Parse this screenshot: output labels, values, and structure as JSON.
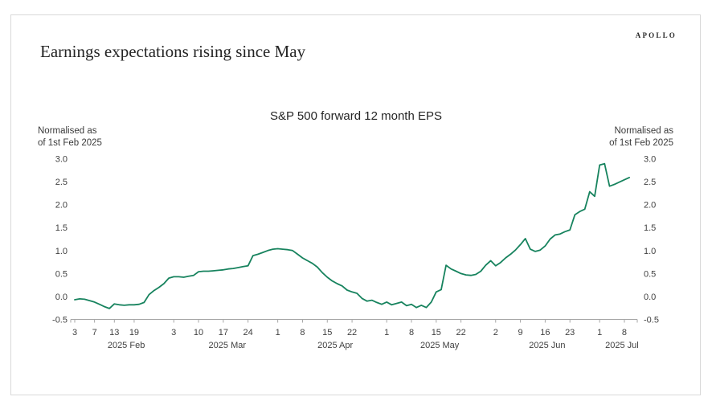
{
  "header": {
    "title": "Earnings expectations rising since May",
    "logo": "APOLLO"
  },
  "colors": {
    "line": "#17835e",
    "axis": "#a6a6a6",
    "tick_text": "#404040",
    "card_border": "#d9d9d9",
    "title_text": "#252525"
  },
  "chart_data": {
    "type": "line",
    "title": "S&P 500 forward 12 month EPS",
    "axis_note_left": {
      "line1": "Normalised as",
      "line2": "of 1st Feb 2025"
    },
    "axis_note_right": {
      "line1": "Normalised as",
      "line2": "of 1st Feb 2025"
    },
    "ylabel": "Normalised as of 1st Feb 2025",
    "ylim": [
      -0.5,
      3.0
    ],
    "grid": false,
    "legend_position": "none",
    "y_ticks": [
      {
        "label": "3.0",
        "value": 3.0
      },
      {
        "label": "2.5",
        "value": 2.5
      },
      {
        "label": "2.0",
        "value": 2.0
      },
      {
        "label": "1.5",
        "value": 1.5
      },
      {
        "label": "1.0",
        "value": 1.0
      },
      {
        "label": "0.5",
        "value": 0.5
      },
      {
        "label": "0.0",
        "value": 0.0
      },
      {
        "label": "-0.5",
        "value": -0.5
      }
    ],
    "x_day_ticks": [
      {
        "label": "3",
        "bd": 0
      },
      {
        "label": "7",
        "bd": 4
      },
      {
        "label": "13",
        "bd": 8
      },
      {
        "label": "19",
        "bd": 12
      },
      {
        "label": "3",
        "bd": 20
      },
      {
        "label": "10",
        "bd": 25
      },
      {
        "label": "17",
        "bd": 30
      },
      {
        "label": "24",
        "bd": 35
      },
      {
        "label": "1",
        "bd": 41
      },
      {
        "label": "8",
        "bd": 46
      },
      {
        "label": "15",
        "bd": 51
      },
      {
        "label": "22",
        "bd": 56
      },
      {
        "label": "1",
        "bd": 63
      },
      {
        "label": "8",
        "bd": 68
      },
      {
        "label": "15",
        "bd": 73
      },
      {
        "label": "22",
        "bd": 78
      },
      {
        "label": "2",
        "bd": 85
      },
      {
        "label": "9",
        "bd": 90
      },
      {
        "label": "16",
        "bd": 95
      },
      {
        "label": "23",
        "bd": 100
      },
      {
        "label": "1",
        "bd": 106
      },
      {
        "label": "8",
        "bd": 111
      }
    ],
    "x_month_labels": [
      {
        "label": "2025 Feb",
        "bd": 10.4
      },
      {
        "label": "2025 Mar",
        "bd": 30.8
      },
      {
        "label": "2025 Apr",
        "bd": 52.6
      },
      {
        "label": "2025 May",
        "bd": 73.7
      },
      {
        "label": "2025 Jun",
        "bd": 95.4
      },
      {
        "label": "2025 Jul",
        "bd": 110.5
      }
    ],
    "series": [
      {
        "name": "S&P 500 forward 12 month EPS (normalised to 1st Feb 2025)",
        "dates": [
          "Feb 3",
          "Feb 4",
          "Feb 5",
          "Feb 6",
          "Feb 7",
          "Feb 10",
          "Feb 11",
          "Feb 12",
          "Feb 13",
          "Feb 14",
          "Feb 17",
          "Feb 18",
          "Feb 19",
          "Feb 20",
          "Feb 21",
          "Feb 24",
          "Feb 25",
          "Feb 26",
          "Feb 27",
          "Feb 28",
          "Mar 3",
          "Mar 4",
          "Mar 5",
          "Mar 6",
          "Mar 7",
          "Mar 10",
          "Mar 11",
          "Mar 12",
          "Mar 13",
          "Mar 14",
          "Mar 17",
          "Mar 18",
          "Mar 19",
          "Mar 20",
          "Mar 21",
          "Mar 24",
          "Mar 25",
          "Mar 26",
          "Mar 27",
          "Mar 28",
          "Mar 31",
          "Apr 1",
          "Apr 2",
          "Apr 3",
          "Apr 4",
          "Apr 7",
          "Apr 8",
          "Apr 9",
          "Apr 10",
          "Apr 11",
          "Apr 14",
          "Apr 15",
          "Apr 16",
          "Apr 17",
          "Apr 18",
          "Apr 21",
          "Apr 22",
          "Apr 23",
          "Apr 24",
          "Apr 25",
          "Apr 28",
          "Apr 29",
          "Apr 30",
          "May 1",
          "May 2",
          "May 5",
          "May 6",
          "May 7",
          "May 8",
          "May 9",
          "May 12",
          "May 13",
          "May 14",
          "May 15",
          "May 16",
          "May 19",
          "May 20",
          "May 21",
          "May 22",
          "May 23",
          "May 26",
          "May 27",
          "May 28",
          "May 29",
          "May 30",
          "Jun 2",
          "Jun 3",
          "Jun 4",
          "Jun 5",
          "Jun 6",
          "Jun 9",
          "Jun 10",
          "Jun 11",
          "Jun 12",
          "Jun 13",
          "Jun 16",
          "Jun 17",
          "Jun 18",
          "Jun 19",
          "Jun 20",
          "Jun 23",
          "Jun 24",
          "Jun 25",
          "Jun 26",
          "Jun 27",
          "Jun 30",
          "Jul 1",
          "Jul 2",
          "Jul 3",
          "Jul 4",
          "Jul 7",
          "Jul 8",
          "Jul 9"
        ],
        "values": [
          -0.07,
          -0.05,
          -0.06,
          -0.09,
          -0.12,
          -0.17,
          -0.22,
          -0.26,
          -0.16,
          -0.18,
          -0.19,
          -0.18,
          -0.18,
          -0.17,
          -0.13,
          0.04,
          0.13,
          0.2,
          0.28,
          0.4,
          0.43,
          0.43,
          0.42,
          0.44,
          0.46,
          0.54,
          0.55,
          0.55,
          0.56,
          0.57,
          0.58,
          0.6,
          0.61,
          0.63,
          0.65,
          0.67,
          0.89,
          0.92,
          0.96,
          1.0,
          1.03,
          1.04,
          1.03,
          1.02,
          1.0,
          0.92,
          0.84,
          0.78,
          0.72,
          0.64,
          0.52,
          0.42,
          0.34,
          0.28,
          0.23,
          0.14,
          0.1,
          0.07,
          -0.04,
          -0.1,
          -0.08,
          -0.13,
          -0.17,
          -0.12,
          -0.18,
          -0.15,
          -0.12,
          -0.2,
          -0.17,
          -0.24,
          -0.19,
          -0.24,
          -0.12,
          0.1,
          0.15,
          0.68,
          0.6,
          0.55,
          0.5,
          0.47,
          0.46,
          0.48,
          0.55,
          0.68,
          0.78,
          0.67,
          0.74,
          0.84,
          0.92,
          1.01,
          1.13,
          1.26,
          1.03,
          0.98,
          1.01,
          1.1,
          1.25,
          1.34,
          1.36,
          1.41,
          1.45,
          1.78,
          1.85,
          1.9,
          2.28,
          2.18,
          2.86,
          2.89,
          2.4,
          2.44,
          2.49,
          2.54,
          2.59
        ]
      }
    ]
  }
}
